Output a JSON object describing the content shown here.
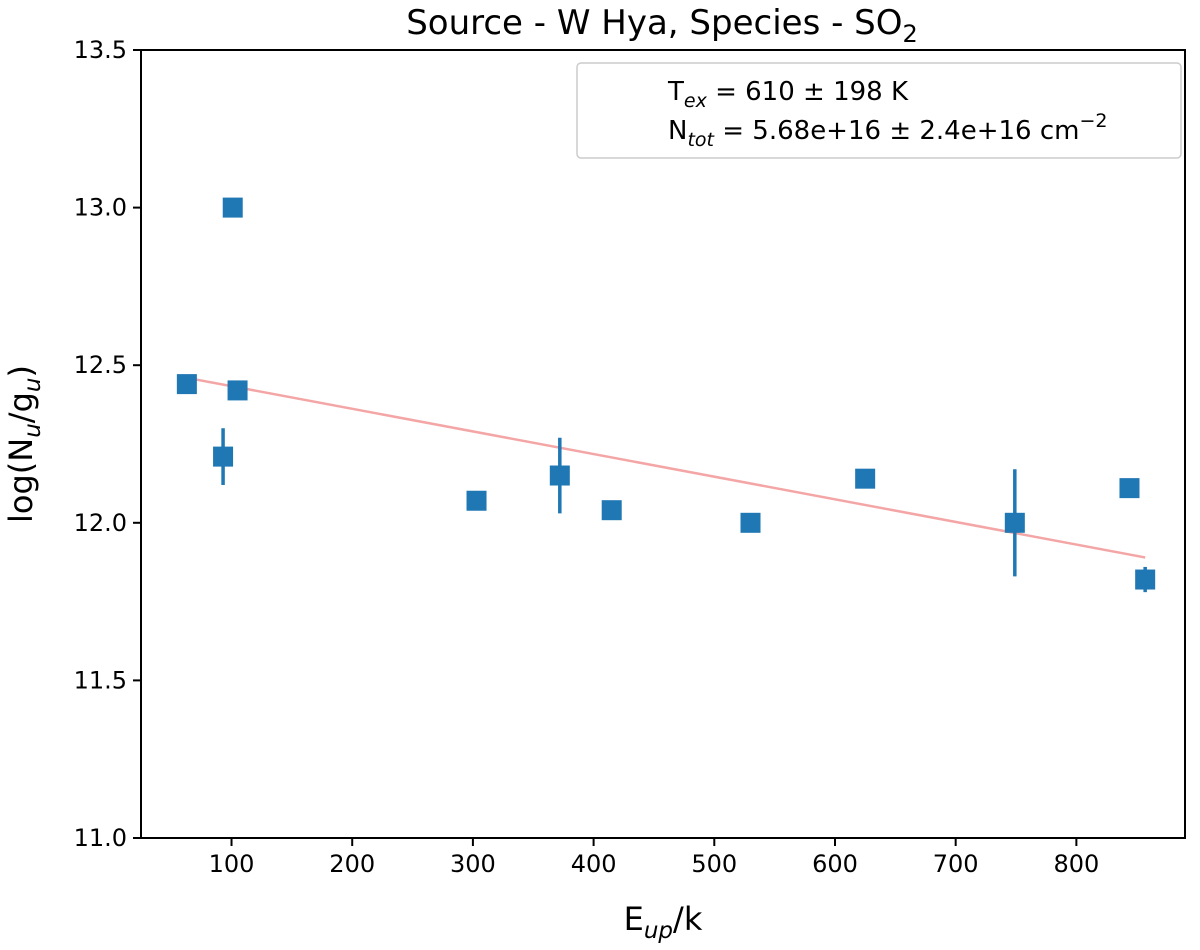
{
  "chart_data": {
    "type": "scatter",
    "title": {
      "prefix": "Source - W Hya, Species - SO",
      "sub": "2"
    },
    "xlabel": {
      "main": "E",
      "sub": "up",
      "suffix": "/k"
    },
    "ylabel": {
      "pre": "log(N",
      "sub1": "u",
      "mid": "/g",
      "sub2": "u",
      "post": ")"
    },
    "xlim": [
      25,
      890
    ],
    "ylim": [
      11.0,
      13.5
    ],
    "xticks": [
      100,
      200,
      300,
      400,
      500,
      600,
      700,
      800
    ],
    "yticks": [
      11.0,
      11.5,
      12.0,
      12.5,
      13.0,
      13.5
    ],
    "xtick_labels": [
      "100",
      "200",
      "300",
      "400",
      "500",
      "600",
      "700",
      "800"
    ],
    "ytick_labels": [
      "11.0",
      "11.5",
      "12.0",
      "12.5",
      "13.0",
      "13.5"
    ],
    "points": [
      {
        "x": 63,
        "y": 12.44,
        "err": 0.03
      },
      {
        "x": 93,
        "y": 12.21,
        "err": 0.09
      },
      {
        "x": 101,
        "y": 13.0,
        "err": 0.0
      },
      {
        "x": 105,
        "y": 12.42,
        "err": 0.0
      },
      {
        "x": 303,
        "y": 12.07,
        "err": 0.0
      },
      {
        "x": 372,
        "y": 12.15,
        "err": 0.12
      },
      {
        "x": 415,
        "y": 12.04,
        "err": 0.0
      },
      {
        "x": 530,
        "y": 12.0,
        "err": 0.0
      },
      {
        "x": 625,
        "y": 12.14,
        "err": 0.0
      },
      {
        "x": 749,
        "y": 12.0,
        "err": 0.17
      },
      {
        "x": 844,
        "y": 12.11,
        "err": 0.0
      },
      {
        "x": 857,
        "y": 11.82,
        "err": 0.04
      }
    ],
    "fit": {
      "x": [
        63,
        857
      ],
      "y": [
        12.46,
        11.89
      ]
    },
    "legend": {
      "position": "top-right",
      "tex": {
        "sym": "T",
        "sub": "ex",
        "value": " = 610 ± 198 K"
      },
      "ntot": {
        "sym": "N",
        "sub": "tot",
        "value": " = 5.68e+16 ± 2.4e+16 cm",
        "sup": "−2"
      }
    },
    "colors": {
      "points": "#1f77b4",
      "fit": "#f4a6a6",
      "axes": "#000000"
    }
  }
}
